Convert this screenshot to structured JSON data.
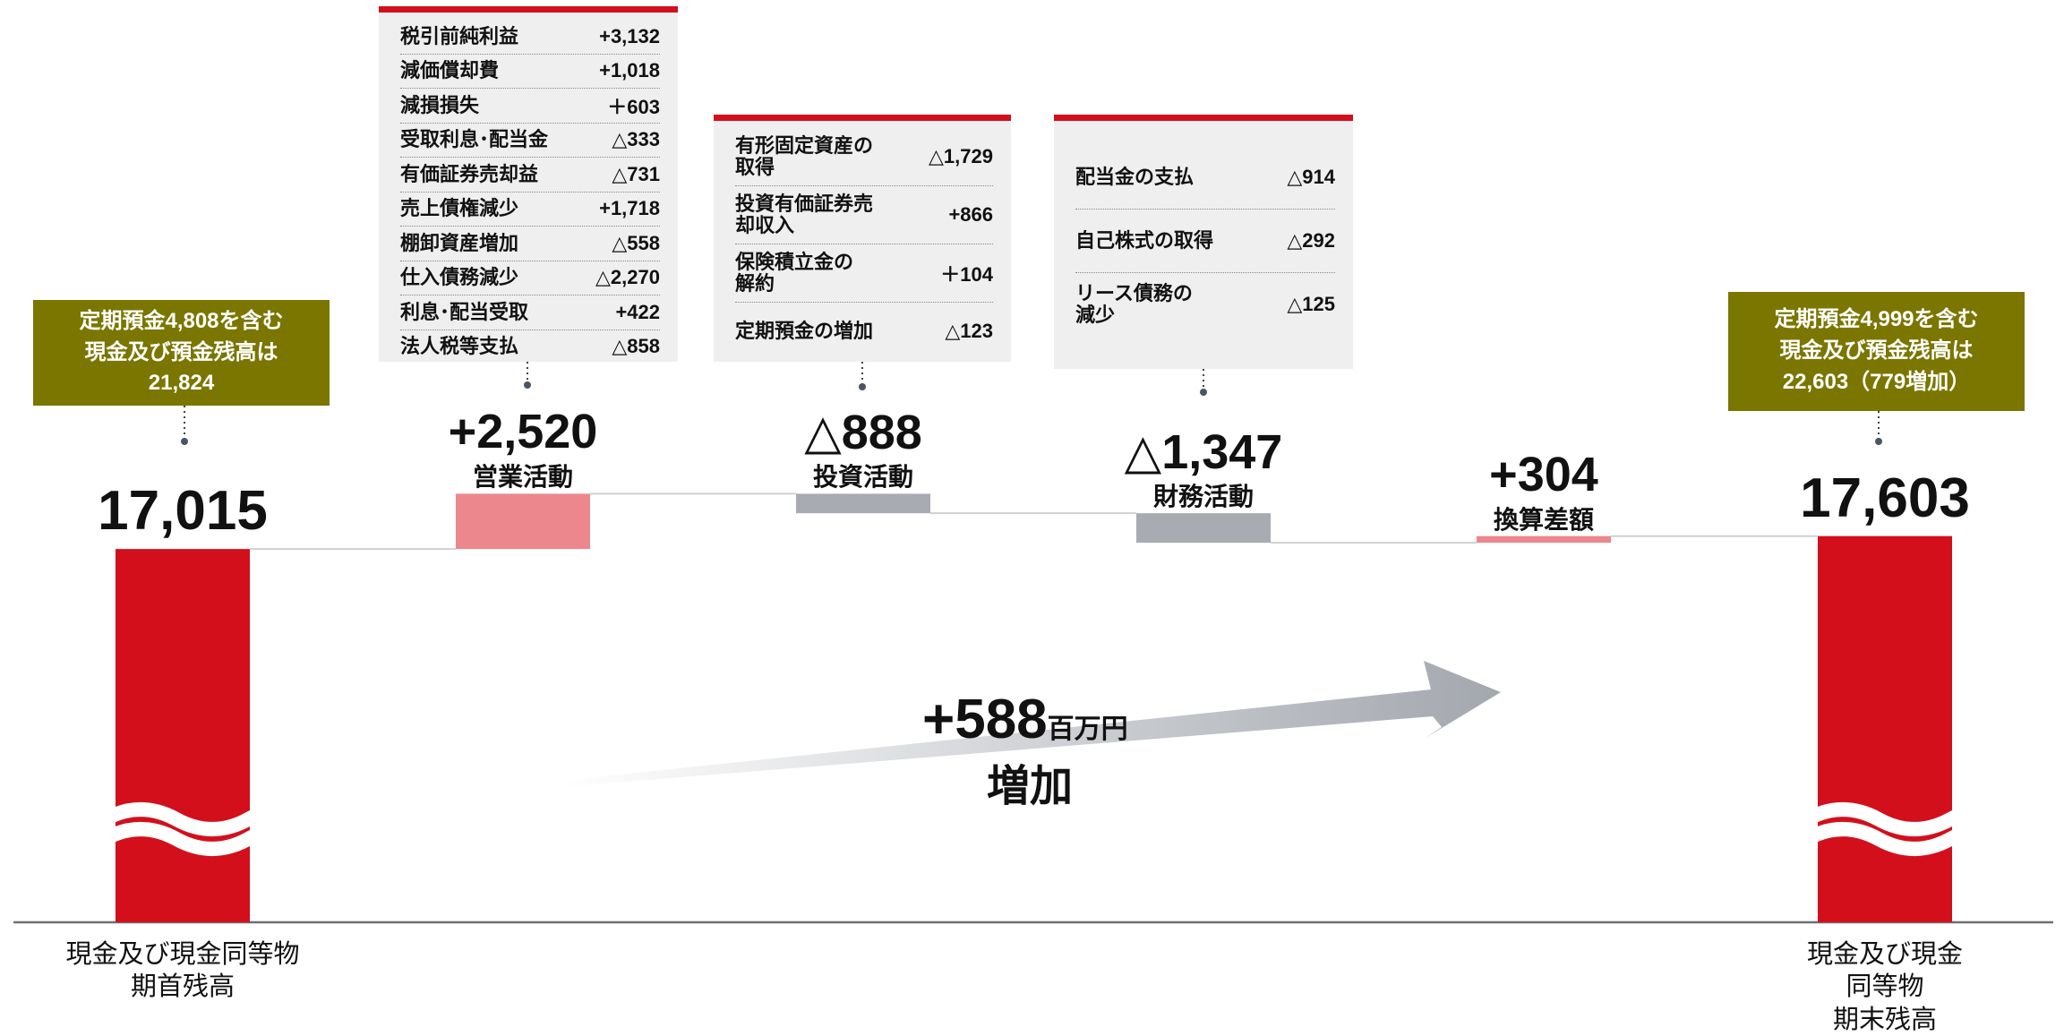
{
  "chart_data": {
    "type": "waterfall",
    "categories": [
      "現金及び現金同等物\n期首残高",
      "営業活動",
      "投資活動",
      "財務活動",
      "換算差額",
      "現金及び現金同等物\n期末残高"
    ],
    "values": [
      17015,
      2520,
      -888,
      -1347,
      304,
      17603
    ],
    "value_labels": [
      "17,015",
      "+2,520",
      "△888",
      "△1,347",
      "+304",
      "17,603"
    ],
    "measure": [
      "absolute",
      "relative",
      "relative",
      "relative",
      "relative",
      "absolute"
    ],
    "colors": {
      "total": "#d40f1c",
      "increase": "#ec878d",
      "decrease": "#a8abb1"
    },
    "ylim": [
      0,
      20000
    ],
    "details": [
      {
        "category": 1,
        "items": [
          [
            "税引前純利益",
            "+3,132"
          ],
          [
            "減価償却費",
            "+1,018"
          ],
          [
            "減損損失",
            "＋603"
          ],
          [
            "受取利息･配当金",
            "△333"
          ],
          [
            "有価証券売却益",
            "△731"
          ],
          [
            "売上債権減少",
            "+1,718"
          ],
          [
            "棚卸資産増加",
            "△558"
          ],
          [
            "仕入債務減少",
            "△2,270"
          ],
          [
            "利息･配当受取",
            "+422"
          ],
          [
            "法人税等支払",
            "△858"
          ]
        ]
      },
      {
        "category": 2,
        "items": [
          [
            "有形固定資産の\n取得",
            "△1,729"
          ],
          [
            "投資有価証券売\n却収入",
            "+866"
          ],
          [
            "保険積立金の\n解約",
            "＋104"
          ],
          [
            "定期預金の増加",
            "△123"
          ]
        ]
      },
      {
        "category": 3,
        "items": [
          [
            "配当金の支払",
            "△914"
          ],
          [
            "自己株式の取得",
            "△292"
          ],
          [
            "リース債務の\n減少",
            "△125"
          ]
        ]
      }
    ],
    "annotations": [
      "定期預金4,808を含む\n現金及び預金残高は\n21,824",
      "定期預金4,999を含む\n現金及び預金残高は\n22,603（779増加）"
    ],
    "arrow_text": {
      "value": "+588",
      "unit": "百万円",
      "label": "増加"
    }
  }
}
